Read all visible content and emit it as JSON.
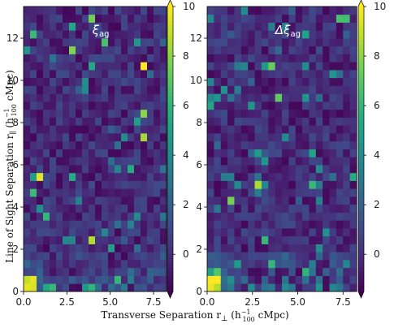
{
  "chart_data": [
    {
      "type": "heatmap",
      "title": "ξ_ag",
      "title_main": "ξ",
      "title_sub": "ag",
      "x_range": [
        0,
        8.25
      ],
      "y_range": [
        0,
        13.5
      ],
      "nx": 22,
      "ny": 36,
      "xticks": [
        "0.0",
        "2.5",
        "5.0",
        "7.5"
      ],
      "yticks": [
        "0",
        "2",
        "4",
        "6",
        "8",
        "10",
        "12"
      ],
      "feature_rows": [
        [
          1.6,
          0.6
        ],
        [
          1.2,
          0.6
        ],
        [
          0.8,
          0.5
        ],
        [
          0.4,
          0.5
        ],
        [
          0.0,
          0.5
        ]
      ],
      "colorbar": {
        "min": -1.5,
        "max": 10,
        "ticks": [
          "0",
          "2",
          "4",
          "6",
          "8",
          "10"
        ],
        "tick_values": [
          0,
          2,
          4,
          6,
          8,
          10
        ],
        "extend": "both",
        "colormap": "viridis"
      }
    },
    {
      "type": "heatmap",
      "title": "Δξ_ag",
      "title_main": "Δξ",
      "title_sub": "ag",
      "x_range": [
        0,
        8.25
      ],
      "y_range": [
        0,
        13.5
      ],
      "nx": 22,
      "ny": 36,
      "xticks": [
        "0.0",
        "2.5",
        "5.0",
        "7.5"
      ],
      "yticks": [
        "0",
        "2",
        "4",
        "6",
        "8",
        "10",
        "12"
      ],
      "feature_rows": [
        [
          2.8,
          0.6
        ],
        [
          2.2,
          0.7
        ],
        [
          1.6,
          0.8
        ],
        [
          1.0,
          1.0
        ],
        [
          0.4,
          1.2
        ]
      ],
      "colorbar": {
        "min": -1.5,
        "max": 10,
        "ticks": [
          "0",
          "2",
          "4",
          "6",
          "8",
          "10"
        ],
        "tick_values": [
          0,
          2,
          4,
          6,
          8,
          10
        ],
        "extend": "both",
        "colormap": "viridis"
      }
    }
  ],
  "labels": {
    "ylabel_text": "Line of Sight Separation r",
    "ylabel_sub": "∥",
    "ylabel_units_pre": " (h",
    "ylabel_units_sup": "−1",
    "ylabel_units_sub": "100",
    "ylabel_units_post": " cMpc)",
    "xlabel_text": "Transverse Separation r",
    "xlabel_sub": "⊥",
    "xlabel_units_pre": " (h",
    "xlabel_units_sup": "−1",
    "xlabel_units_sub": "100",
    "xlabel_units_post": " cMpc)"
  }
}
